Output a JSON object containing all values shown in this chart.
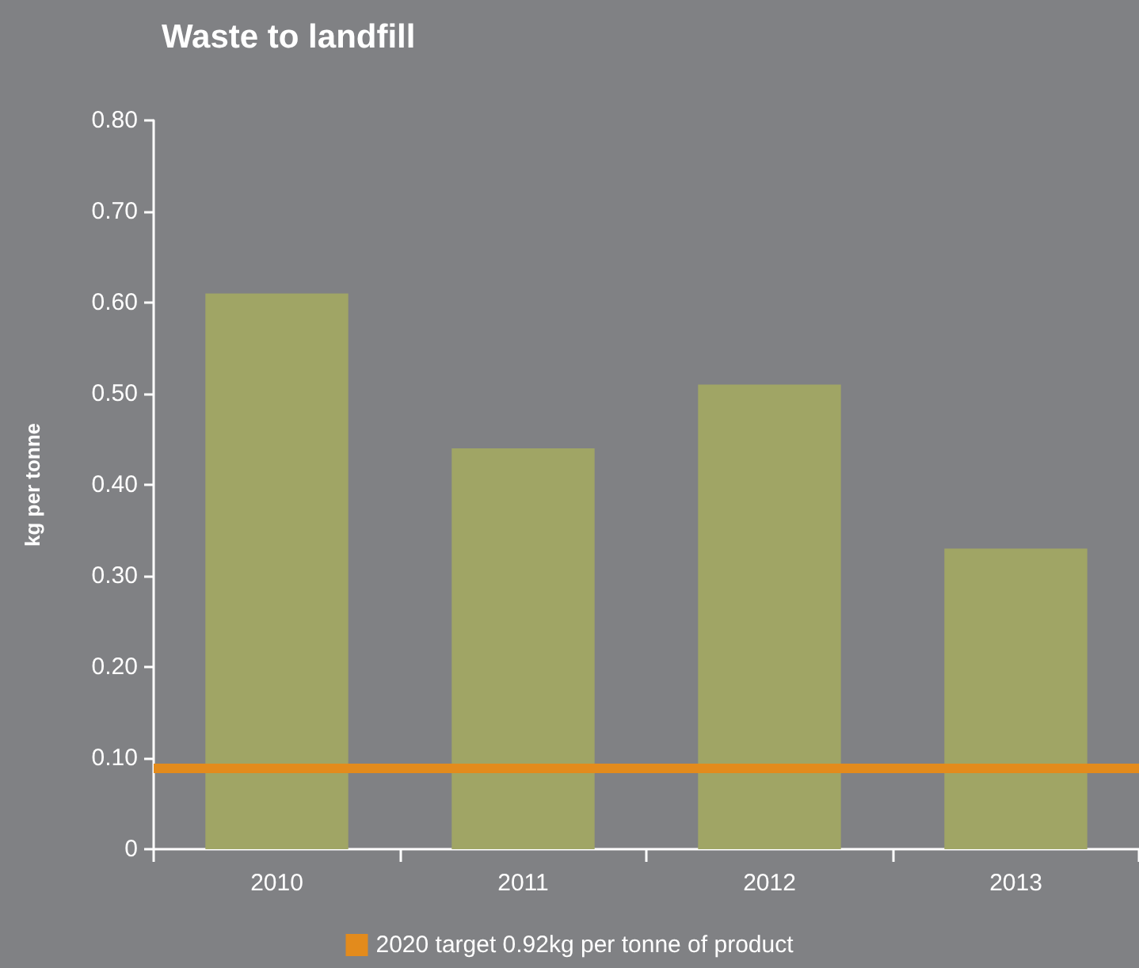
{
  "chart_data": {
    "type": "bar",
    "title": "Waste to landfill",
    "ylabel": "kg per tonne",
    "categories": [
      "2010",
      "2011",
      "2012",
      "2013"
    ],
    "values": [
      0.61,
      0.44,
      0.51,
      0.33
    ],
    "color": "#a0a565",
    "ylim": [
      0,
      0.8
    ],
    "yticks": [
      0,
      {
        "value": 0.1,
        "label": "0.10"
      },
      {
        "value": 0.2,
        "label": "0.20"
      },
      {
        "value": 0.3,
        "label": "0.30"
      },
      {
        "value": 0.4,
        "label": "0.40"
      },
      {
        "value": 0.5,
        "label": "0.50"
      },
      {
        "value": 0.6,
        "label": "0.60"
      },
      {
        "value": 0.7,
        "label": "0.70"
      },
      {
        "value": 0.8,
        "label": "0.80"
      }
    ],
    "ref_lines": [
      {
        "axis": "y",
        "value": 0.09,
        "label": "2020 target 0.92kg per tonne of product",
        "color": "#e38b1c"
      }
    ],
    "grid": false,
    "legend": "bottom"
  }
}
